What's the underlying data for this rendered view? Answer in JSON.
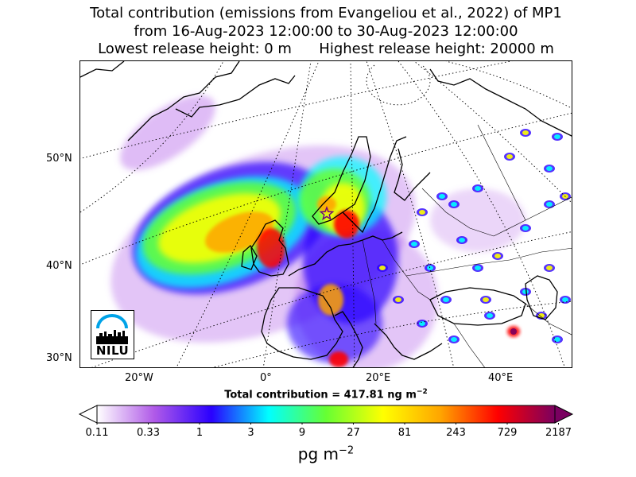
{
  "title": {
    "line1": "Total contribution (emissions from Evangeliou et al., 2022) of MP1",
    "line2": "from 16-Aug-2023 12:00:00 to 30-Aug-2023 12:00:00",
    "line3": "Lowest release height: 0 m      Highest release height: 20000 m"
  },
  "map": {
    "projection": "stereographic-north",
    "lat_labels": [
      "50°N",
      "40°N",
      "30°N"
    ],
    "lon_labels": [
      "20°W",
      "0°",
      "20°E",
      "40°E"
    ],
    "marker": "star",
    "logo_text": "NILU",
    "logo_icon": "nilu-logo-icon"
  },
  "total_contribution": {
    "label": "Total contribution = 417.81 ng m",
    "exponent": "−2"
  },
  "colorbar": {
    "tick_labels": [
      "0.11",
      "0.33",
      "1",
      "3",
      "9",
      "27",
      "81",
      "243",
      "729",
      "2187"
    ],
    "unit": "pg m",
    "unit_exponent": "−2",
    "extend": "both",
    "colors": [
      "#ffffff",
      "#b05ae8",
      "#2a00ff",
      "#00ffff",
      "#66ff33",
      "#ffff00",
      "#ffa500",
      "#ff0000",
      "#7a0060"
    ]
  }
}
